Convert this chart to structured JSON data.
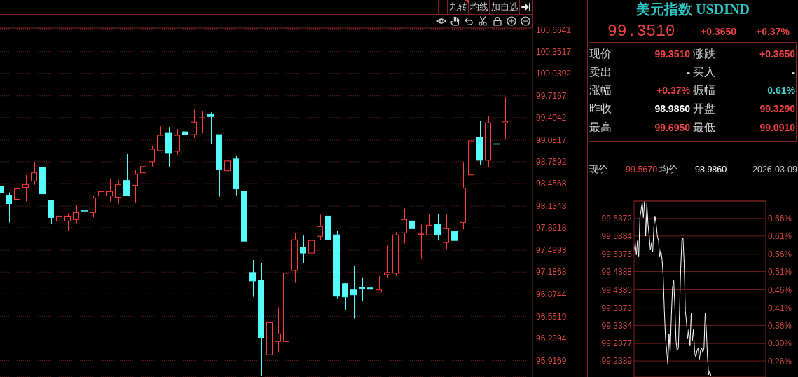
{
  "chart_data": [
    {
      "type": "candlestick",
      "categories": [
        null,
        null,
        null,
        null,
        null,
        null,
        null,
        null,
        null,
        null,
        null,
        null,
        null,
        null,
        null,
        null,
        null,
        null,
        null,
        null,
        null,
        null,
        null,
        null,
        null,
        null,
        null,
        null,
        null,
        null,
        null,
        null,
        null,
        null,
        null,
        null,
        null,
        null,
        null,
        null,
        null,
        null,
        null,
        null,
        null,
        null,
        null,
        null,
        null,
        null,
        null,
        null,
        null,
        null,
        null,
        null,
        null,
        null,
        null,
        null,
        null
      ],
      "ohlc": [
        [
          98.42,
          98.43,
          98.32,
          98.33
        ],
        [
          98.29,
          98.33,
          97.9,
          98.17
        ],
        [
          98.23,
          98.66,
          98.2,
          98.38
        ],
        [
          98.4,
          98.58,
          98.2,
          98.44
        ],
        [
          98.49,
          98.77,
          98.44,
          98.61
        ],
        [
          98.69,
          98.75,
          98.22,
          98.31
        ],
        [
          98.21,
          98.22,
          97.88,
          97.97
        ],
        [
          97.92,
          98.04,
          97.78,
          97.99
        ],
        [
          97.92,
          98.03,
          97.78,
          97.99
        ],
        [
          97.94,
          98.15,
          97.89,
          98.04
        ],
        [
          98.07,
          98.19,
          97.94,
          98.06
        ],
        [
          98.04,
          98.28,
          97.97,
          98.25
        ],
        [
          98.28,
          98.52,
          98.2,
          98.34
        ],
        [
          98.28,
          98.52,
          98.2,
          98.34
        ],
        [
          98.26,
          98.51,
          98.17,
          98.44
        ],
        [
          98.5,
          98.88,
          98.28,
          98.29
        ],
        [
          98.43,
          98.65,
          98.18,
          98.59
        ],
        [
          98.61,
          98.77,
          98.52,
          98.7
        ],
        [
          98.77,
          99.0,
          98.7,
          98.95
        ],
        [
          98.93,
          99.28,
          98.92,
          99.15
        ],
        [
          99.18,
          99.27,
          98.69,
          98.89
        ],
        [
          98.92,
          99.24,
          98.87,
          99.15
        ],
        [
          99.2,
          99.27,
          98.95,
          99.16
        ],
        [
          99.16,
          99.52,
          99.11,
          99.34
        ],
        [
          99.4,
          99.5,
          99.18,
          99.4
        ],
        [
          99.45,
          99.48,
          99.02,
          99.42
        ],
        [
          99.16,
          99.16,
          98.27,
          98.66
        ],
        [
          98.64,
          98.89,
          98.41,
          98.78
        ],
        [
          98.81,
          98.85,
          98.29,
          98.38
        ],
        [
          98.35,
          98.5,
          97.45,
          97.63
        ],
        [
          97.18,
          97.36,
          96.83,
          97.06
        ],
        [
          97.07,
          97.31,
          95.7,
          96.24
        ],
        [
          96.0,
          96.8,
          95.88,
          96.46
        ],
        [
          96.19,
          96.68,
          96.04,
          96.3
        ],
        [
          96.19,
          97.17,
          96.19,
          97.17
        ],
        [
          97.21,
          97.75,
          97.03,
          97.65
        ],
        [
          97.54,
          97.71,
          97.32,
          97.46
        ],
        [
          97.46,
          97.75,
          97.34,
          97.64
        ],
        [
          97.7,
          98.01,
          97.64,
          97.84
        ],
        [
          97.99,
          97.99,
          97.59,
          97.65
        ],
        [
          97.72,
          97.78,
          96.81,
          96.84
        ],
        [
          97.02,
          97.03,
          96.64,
          96.83
        ],
        [
          96.93,
          97.28,
          96.52,
          96.86
        ],
        [
          96.97,
          97.1,
          96.77,
          96.95
        ],
        [
          96.96,
          97.17,
          96.83,
          96.94
        ],
        [
          96.9,
          97.13,
          96.9,
          96.93
        ],
        [
          97.15,
          97.57,
          97.1,
          97.18
        ],
        [
          97.17,
          97.76,
          97.13,
          97.72
        ],
        [
          97.75,
          98.1,
          97.6,
          97.94
        ],
        [
          97.92,
          98.1,
          97.61,
          97.81
        ],
        [
          97.73,
          97.87,
          97.38,
          97.73
        ],
        [
          97.72,
          98.01,
          97.72,
          97.86
        ],
        [
          97.87,
          98.02,
          97.64,
          97.72
        ],
        [
          97.61,
          98.01,
          97.51,
          97.81
        ],
        [
          97.77,
          97.87,
          97.58,
          97.64
        ],
        [
          97.9,
          98.77,
          97.8,
          98.39
        ],
        [
          98.58,
          99.71,
          98.46,
          99.07
        ],
        [
          99.12,
          99.36,
          98.72,
          98.79
        ],
        [
          98.79,
          99.43,
          98.69,
          99.33
        ],
        [
          99.03,
          99.45,
          98.86,
          99.02
        ],
        [
          99.33,
          99.7,
          99.09,
          99.35
        ]
      ],
      "colors": [
        "#54fcfc",
        "#54fcfc",
        "#ff3c3c",
        "#ff3c3c",
        "#ff3c3c",
        "#54fcfc",
        "#54fcfc",
        "#ff3c3c",
        "#ff3c3c",
        "#ff3c3c",
        "#54fcfc",
        "#ff3c3c",
        "#ff3c3c",
        "#ff3c3c",
        "#ff3c3c",
        "#54fcfc",
        "#ff3c3c",
        "#ff3c3c",
        "#ff3c3c",
        "#ff3c3c",
        "#54fcfc",
        "#ff3c3c",
        "#54fcfc",
        "#ff3c3c",
        "#ff3c3c",
        "#54fcfc",
        "#54fcfc",
        "#ff3c3c",
        "#54fcfc",
        "#54fcfc",
        "#54fcfc",
        "#54fcfc",
        "#ff3c3c",
        "#ff3c3c",
        "#ff3c3c",
        "#ff3c3c",
        "#54fcfc",
        "#ff3c3c",
        "#ff3c3c",
        "#54fcfc",
        "#54fcfc",
        "#54fcfc",
        "#54fcfc",
        "#54fcfc",
        "#54fcfc",
        "#ff3c3c",
        "#ff3c3c",
        "#ff3c3c",
        "#ff3c3c",
        "#54fcfc",
        "#ff3c3c",
        "#ff3c3c",
        "#54fcfc",
        "#ff3c3c",
        "#54fcfc",
        "#ff3c3c",
        "#ff3c3c",
        "#54fcfc",
        "#ff3c3c",
        "#54fcfc",
        "#ff3c3c"
      ],
      "ylim": [
        95.68,
        100.69
      ],
      "yticks": [
        100.6641,
        100.3517,
        100.0392,
        99.7167,
        99.4042,
        99.0817,
        98.7692,
        98.4568,
        98.1343,
        97.8218,
        97.4993,
        97.1868,
        96.8744,
        96.5519,
        96.2394,
        95.9169
      ],
      "grid": "y",
      "annotations": [
        "九转",
        "均线",
        "加自选"
      ]
    },
    {
      "type": "other",
      "title": "美元指数 USDIND",
      "annotations": [
        "99.3510",
        "+0.3650",
        "+0.37%",
        "现价",
        "99.3510",
        "涨跌",
        "+0.3650",
        "卖出",
        "-",
        "买入",
        "-",
        "涨幅",
        "+0.37%",
        "振幅",
        "0.61%",
        "昨收",
        "98.9860",
        "开盘",
        "99.3290",
        "最高",
        "99.6950",
        "最低",
        "99.0910"
      ]
    },
    {
      "type": "line",
      "categories": [
        null,
        null,
        null,
        null,
        null,
        null,
        null,
        null,
        null,
        null,
        null,
        null,
        null,
        null,
        null,
        null,
        null,
        null,
        null,
        null,
        null,
        null,
        null,
        null,
        null,
        null,
        null,
        null,
        null,
        null,
        null,
        null,
        null,
        null,
        null,
        null,
        null,
        null,
        null,
        null,
        null,
        null,
        null,
        null,
        null,
        null,
        null,
        null,
        null,
        null,
        null,
        null,
        null,
        null,
        null,
        null,
        null,
        null,
        null,
        null,
        null,
        null,
        null,
        null,
        null,
        null,
        null,
        null,
        null,
        null,
        null,
        null,
        null,
        null,
        null,
        null,
        null,
        null,
        null,
        null,
        null,
        null,
        null,
        null,
        null,
        null,
        null,
        null,
        null,
        null,
        null,
        null,
        null,
        null,
        null,
        null,
        null,
        null,
        null,
        null,
        null,
        null,
        null,
        null,
        null,
        null,
        null,
        null,
        null,
        null,
        null,
        null,
        null,
        null
      ],
      "series": [
        {
          "color": "#ffffff",
          "values": [
            99.549,
            99.569,
            99.536,
            99.575,
            99.53,
            99.64,
            99.66,
            99.683,
            99.64,
            99.685,
            99.588,
            99.68,
            99.621,
            99.588,
            99.549,
            99.569,
            99.543,
            99.614,
            99.644,
            99.621,
            99.588,
            99.575,
            99.53,
            99.549,
            99.523,
            99.477,
            99.379,
            99.301,
            99.268,
            99.229,
            99.314,
            99.262,
            99.366,
            99.445,
            99.464,
            99.392,
            99.294,
            99.268,
            99.275,
            99.379,
            99.497,
            99.575,
            99.582,
            99.51,
            99.379,
            99.347,
            99.301,
            99.327,
            99.281,
            99.373,
            99.294,
            99.327,
            99.262,
            99.249,
            99.268,
            99.275,
            99.242,
            99.268,
            99.275,
            99.262,
            99.275,
            99.373,
            99.327,
            99.249,
            99.2,
            99.21,
            99.196,
            null,
            null,
            null,
            null,
            null,
            null,
            null,
            null,
            null,
            null,
            null,
            null,
            null,
            null,
            null,
            null,
            null,
            null,
            null,
            null,
            null,
            null,
            null,
            null,
            null,
            null,
            null,
            null,
            null,
            null,
            null,
            null,
            null,
            null,
            null,
            null,
            null,
            null,
            null,
            null,
            null,
            null,
            null,
            null,
            null,
            null,
            null
          ]
        }
      ],
      "ylim": [
        99.194,
        99.686
      ],
      "yticks": [
        99.6372,
        99.5884,
        99.5376,
        99.4888,
        {
          "value": 99.438,
          "label": "99.4380"
        },
        99.3873,
        99.3384,
        99.2877,
        99.2389
      ],
      "y2lim": [
        0.21,
        0.707
      ],
      "y2ticks": [
        {
          "value": 0.658,
          "label": "0.66%"
        },
        {
          "value": 0.609,
          "label": "0.61%"
        },
        {
          "value": 0.557,
          "label": "0.56%"
        },
        {
          "value": 0.508,
          "label": "0.51%"
        },
        {
          "value": 0.457,
          "label": "0.46%"
        },
        {
          "value": 0.405,
          "label": "0.41%"
        },
        {
          "value": 0.356,
          "label": "0.36%"
        },
        {
          "value": 0.305,
          "label": "0.30%"
        },
        {
          "value": 0.255,
          "label": "0.26%"
        }
      ],
      "grid": "y",
      "annotations": [
        "现价",
        "99.5670",
        "均价",
        "98.9860",
        "2026-03-09"
      ]
    }
  ]
}
